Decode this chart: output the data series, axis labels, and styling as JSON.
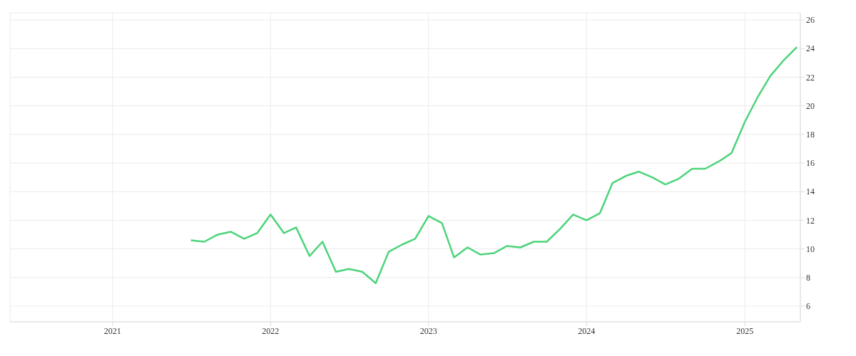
{
  "chart_data": {
    "type": "line",
    "x": [
      "2021-07",
      "2021-08",
      "2021-09",
      "2021-10",
      "2021-11",
      "2021-12",
      "2022-01",
      "2022-02",
      "2022-03",
      "2022-04",
      "2022-05",
      "2022-06",
      "2022-07",
      "2022-08",
      "2022-09",
      "2022-10",
      "2022-11",
      "2022-12",
      "2023-01",
      "2023-02",
      "2023-03",
      "2023-04",
      "2023-05",
      "2023-06",
      "2023-07",
      "2023-08",
      "2023-09",
      "2023-10",
      "2023-11",
      "2023-12",
      "2024-01",
      "2024-02",
      "2024-03",
      "2024-04",
      "2024-05",
      "2024-06",
      "2024-07",
      "2024-08",
      "2024-09",
      "2024-10",
      "2024-11",
      "2024-12",
      "2025-01",
      "2025-02",
      "2025-03",
      "2025-04",
      "2025-05"
    ],
    "series": [
      {
        "color": "#4cd47a",
        "values": [
          10.6,
          10.5,
          11.0,
          11.2,
          10.7,
          11.1,
          12.4,
          11.1,
          11.5,
          9.5,
          10.5,
          8.4,
          8.6,
          8.4,
          7.6,
          9.8,
          10.3,
          10.7,
          12.3,
          11.8,
          9.4,
          10.1,
          9.6,
          9.7,
          10.2,
          10.1,
          10.5,
          10.5,
          11.4,
          12.4,
          12.0,
          12.5,
          14.6,
          15.1,
          15.4,
          15.0,
          14.5,
          14.9,
          15.6,
          15.6,
          16.1,
          16.7,
          18.9,
          20.7,
          22.1,
          23.2,
          24.1
        ]
      }
    ],
    "xlim": [
      "2020-05-09",
      "2025-05-09"
    ],
    "xticks": [
      "2021",
      "2022",
      "2023",
      "2024",
      "2025"
    ],
    "ylim": [
      4.9,
      26.5
    ],
    "yticks": [
      6,
      8,
      10,
      12,
      14,
      16,
      18,
      20,
      22,
      24,
      26
    ],
    "grid": true,
    "legend": false,
    "marker": "none",
    "line_style": "solid"
  }
}
